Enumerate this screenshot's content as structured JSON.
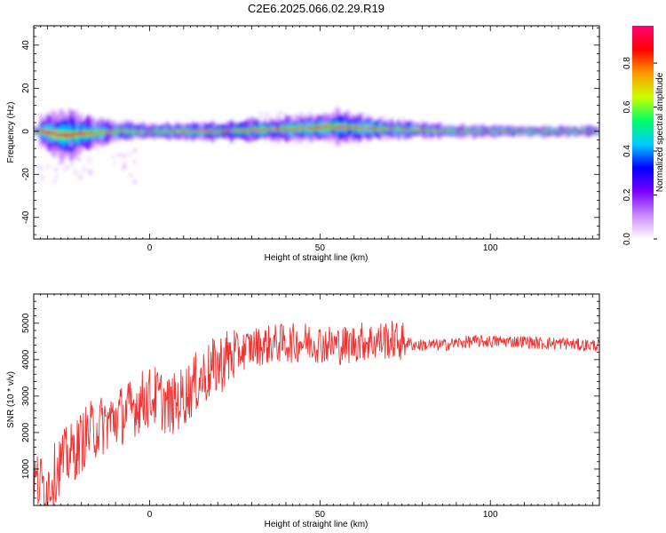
{
  "title": "C2E6.2025.066.02.29.R19",
  "chart_data": [
    {
      "type": "heatmap",
      "xlabel": "Height of straight line (km)",
      "ylabel": "Frequency (Hz)",
      "xlim": [
        -34,
        132
      ],
      "ylim": [
        -50,
        49
      ],
      "xticks": [
        0,
        50,
        100
      ],
      "yticks": [
        -40,
        -20,
        0,
        20,
        40
      ],
      "colorbar": {
        "label": "Normalized spectral amplitude",
        "range": [
          0,
          0.97
        ],
        "ticks": [
          0.0,
          0.2,
          0.4,
          0.6,
          0.8
        ],
        "colors": [
          "#ffffff",
          "#cc88ff",
          "#7700ff",
          "#0000ff",
          "#00ccff",
          "#00ff66",
          "#ccff00",
          "#ff9900",
          "#ff0000",
          "#ff0077"
        ]
      },
      "band_profile": [
        {
          "x": -32,
          "center": 0,
          "width": 14
        },
        {
          "x": -25,
          "center": -2,
          "width": 22
        },
        {
          "x": -18,
          "center": -1,
          "width": 14
        },
        {
          "x": -10,
          "center": 0,
          "width": 8
        },
        {
          "x": 0,
          "center": 0,
          "width": 6
        },
        {
          "x": 20,
          "center": 0,
          "width": 8
        },
        {
          "x": 40,
          "center": 1,
          "width": 10
        },
        {
          "x": 55,
          "center": 2,
          "width": 14
        },
        {
          "x": 70,
          "center": 1,
          "width": 8
        },
        {
          "x": 90,
          "center": 0,
          "width": 5
        },
        {
          "x": 132,
          "center": 0,
          "width": 4
        }
      ]
    },
    {
      "type": "line",
      "xlabel": "Height of straight line (km)",
      "ylabel": "SNR (10 * v/v)",
      "xlim": [
        -34,
        132
      ],
      "ylim": [
        0,
        5800
      ],
      "xticks": [
        0,
        50,
        100
      ],
      "yticks": [
        1000,
        2000,
        3000,
        4000,
        5000
      ],
      "series": [
        {
          "color": "#ee3333",
          "x": [
            -34,
            -30,
            -26,
            -22,
            -18,
            -14,
            -10,
            -6,
            -2,
            2,
            6,
            10,
            14,
            18,
            22,
            26,
            30,
            34,
            38,
            42,
            46,
            50,
            54,
            58,
            62,
            66,
            70,
            74,
            78,
            82,
            86,
            90,
            94,
            98,
            102,
            106,
            110,
            114,
            118,
            122,
            126,
            130,
            132
          ],
          "y": [
            700,
            500,
            1200,
            1500,
            2000,
            2200,
            2400,
            2600,
            2900,
            3000,
            2700,
            3000,
            3400,
            3700,
            4000,
            4200,
            4350,
            4400,
            4450,
            4450,
            4500,
            4450,
            4400,
            4400,
            4500,
            4500,
            4550,
            4500,
            4400,
            4400,
            4400,
            4450,
            4500,
            4500,
            4500,
            4500,
            4500,
            4450,
            4450,
            4450,
            4400,
            4400,
            4400
          ]
        }
      ]
    }
  ]
}
